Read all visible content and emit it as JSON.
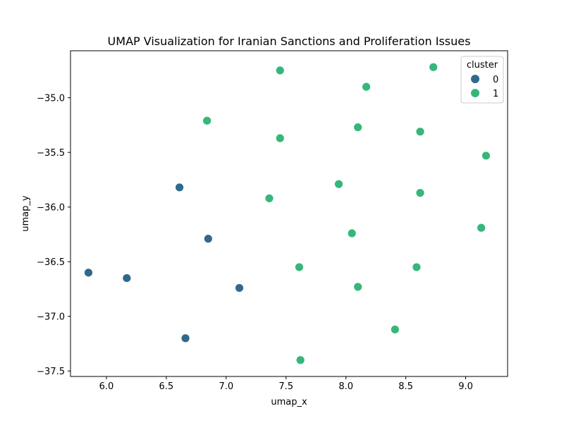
{
  "chart_data": {
    "type": "scatter",
    "title": "UMAP Visualization for Iranian Sanctions and Proliferation Issues",
    "xlabel": "umap_x",
    "ylabel": "umap_y",
    "xlim": [
      5.7,
      9.35
    ],
    "ylim": [
      -37.55,
      -34.57
    ],
    "xticks": [
      6.0,
      6.5,
      7.0,
      7.5,
      8.0,
      8.5,
      9.0
    ],
    "xtick_labels": [
      "6.0",
      "6.5",
      "7.0",
      "7.5",
      "8.0",
      "8.5",
      "9.0"
    ],
    "yticks": [
      -35.0,
      -35.5,
      -36.0,
      -36.5,
      -37.0,
      -37.5
    ],
    "ytick_labels": [
      "−35.0",
      "−35.5",
      "−36.0",
      "−36.5",
      "−37.0",
      "−37.5"
    ],
    "grid": false,
    "legend": {
      "title": "cluster",
      "placement": "top-right",
      "entries": [
        {
          "label": "0",
          "color": "#31688e"
        },
        {
          "label": "1",
          "color": "#35b779"
        }
      ]
    },
    "series": [
      {
        "name": "0",
        "color": "#31688e",
        "points": [
          {
            "x": 6.61,
            "y": -35.82
          },
          {
            "x": 6.85,
            "y": -36.29
          },
          {
            "x": 5.85,
            "y": -36.6
          },
          {
            "x": 6.17,
            "y": -36.65
          },
          {
            "x": 7.11,
            "y": -36.74
          },
          {
            "x": 6.66,
            "y": -37.2
          }
        ]
      },
      {
        "name": "1",
        "color": "#35b779",
        "points": [
          {
            "x": 7.45,
            "y": -34.75
          },
          {
            "x": 8.73,
            "y": -34.72
          },
          {
            "x": 8.17,
            "y": -34.9
          },
          {
            "x": 6.84,
            "y": -35.21
          },
          {
            "x": 8.1,
            "y": -35.27
          },
          {
            "x": 8.62,
            "y": -35.31
          },
          {
            "x": 7.45,
            "y": -35.37
          },
          {
            "x": 9.17,
            "y": -35.53
          },
          {
            "x": 7.94,
            "y": -35.79
          },
          {
            "x": 8.62,
            "y": -35.87
          },
          {
            "x": 7.36,
            "y": -35.92
          },
          {
            "x": 9.13,
            "y": -36.19
          },
          {
            "x": 8.05,
            "y": -36.24
          },
          {
            "x": 7.61,
            "y": -36.55
          },
          {
            "x": 8.59,
            "y": -36.55
          },
          {
            "x": 8.1,
            "y": -36.73
          },
          {
            "x": 8.41,
            "y": -37.12
          },
          {
            "x": 7.62,
            "y": -37.4
          }
        ]
      }
    ]
  }
}
